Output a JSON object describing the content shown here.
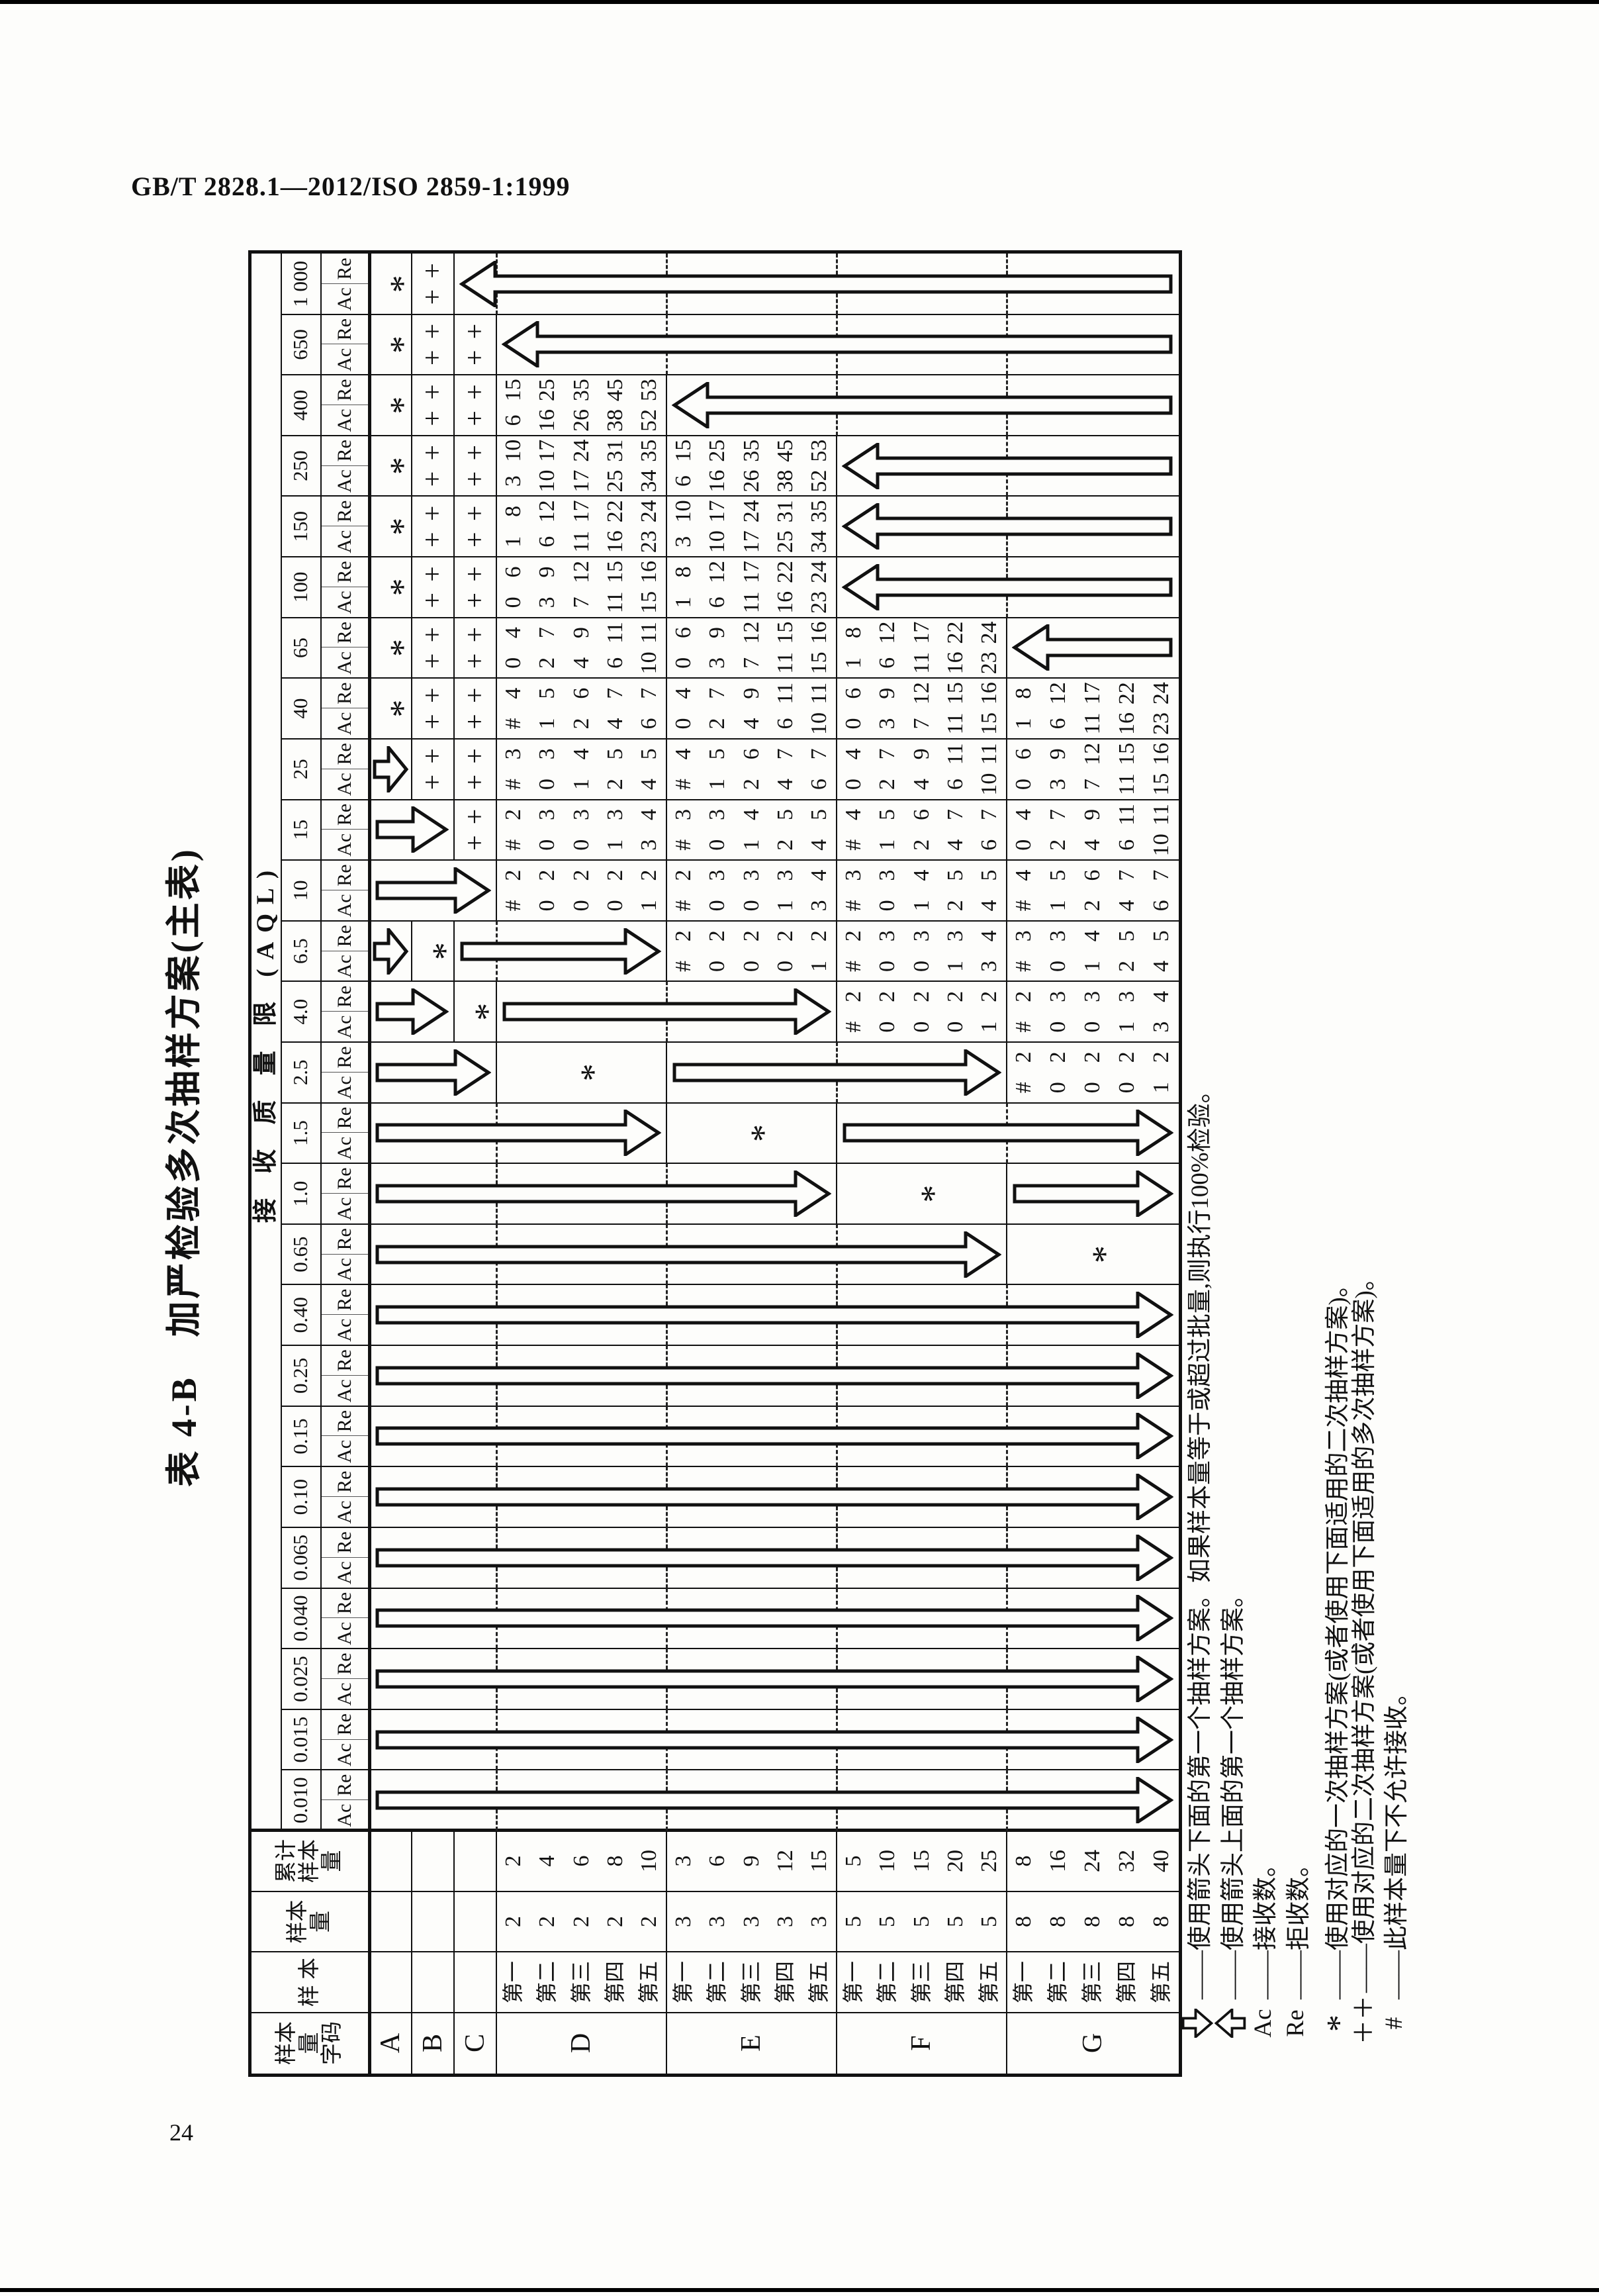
{
  "page": {
    "doc_ref": "GB/T 2828.1—2012/ISO 2859-1:1999",
    "page_number": "24"
  },
  "glyphs": {
    "star": "*",
    "double_plan": "++",
    "not_permitted": "#"
  },
  "table": {
    "title": "表 4-B　加严检验多次抽样方案(主表)",
    "headers": {
      "code": "样本量\n字码",
      "sample": "样 本",
      "size": "样本量",
      "cum": "累计\n样本量",
      "aql_span": "接 收 质 量 限 (AQL)",
      "ac": "Ac",
      "re": "Re"
    },
    "aql_labels": [
      "0.010",
      "0.015",
      "0.025",
      "0.040",
      "0.065",
      "0.10",
      "0.15",
      "0.25",
      "0.40",
      "0.65",
      "1.0",
      "1.5",
      "2.5",
      "4.0",
      "6.5",
      "10",
      "15",
      "25",
      "40",
      "65",
      "100",
      "150",
      "250",
      "400",
      "650",
      "1 000"
    ],
    "samples": [
      "第一",
      "第二",
      "第三",
      "第四",
      "第五"
    ],
    "ladder": [
      {
        "ac": [
          "#",
          "0",
          "0",
          "0",
          "1"
        ],
        "re": [
          "2",
          "2",
          "2",
          "2",
          "2"
        ]
      },
      {
        "ac": [
          "#",
          "0",
          "0",
          "1",
          "3"
        ],
        "re": [
          "2",
          "3",
          "3",
          "3",
          "4"
        ]
      },
      {
        "ac": [
          "#",
          "0",
          "1",
          "2",
          "4"
        ],
        "re": [
          "3",
          "3",
          "4",
          "5",
          "5"
        ]
      },
      {
        "ac": [
          "#",
          "1",
          "2",
          "4",
          "6"
        ],
        "re": [
          "4",
          "5",
          "6",
          "7",
          "7"
        ]
      },
      {
        "ac": [
          "0",
          "2",
          "4",
          "6",
          "10"
        ],
        "re": [
          "4",
          "7",
          "9",
          "11",
          "11"
        ]
      },
      {
        "ac": [
          "0",
          "3",
          "7",
          "11",
          "15"
        ],
        "re": [
          "6",
          "9",
          "12",
          "15",
          "16"
        ]
      },
      {
        "ac": [
          "1",
          "6",
          "11",
          "16",
          "23"
        ],
        "re": [
          "8",
          "12",
          "17",
          "22",
          "24"
        ]
      },
      {
        "ac": [
          "3",
          "10",
          "17",
          "25",
          "34"
        ],
        "re": [
          "10",
          "17",
          "24",
          "31",
          "35"
        ]
      },
      {
        "ac": [
          "6",
          "16",
          "26",
          "38",
          "52"
        ],
        "re": [
          "15",
          "25",
          "35",
          "45",
          "53"
        ]
      }
    ],
    "groups": [
      {
        "code": "A",
        "sizes": [],
        "cums": [],
        "plans": {}
      },
      {
        "code": "B",
        "sizes": [],
        "cums": [],
        "plans": {}
      },
      {
        "code": "C",
        "sizes": [],
        "cums": [],
        "plans": {}
      },
      {
        "code": "D",
        "sizes": [
          "2",
          "2",
          "2",
          "2",
          "2"
        ],
        "cums": [
          "2",
          "4",
          "6",
          "8",
          "10"
        ],
        "plans": {
          "10": 0,
          "15": 1,
          "25": 2,
          "40": 3,
          "65": 4,
          "100": 5,
          "150": 6,
          "250": 7,
          "400": 8
        }
      },
      {
        "code": "E",
        "sizes": [
          "3",
          "3",
          "3",
          "3",
          "3"
        ],
        "cums": [
          "3",
          "6",
          "9",
          "12",
          "15"
        ],
        "plans": {
          "6.5": 0,
          "10": 1,
          "15": 2,
          "25": 3,
          "40": 4,
          "65": 5,
          "100": 6,
          "150": 7,
          "250": 8
        }
      },
      {
        "code": "F",
        "sizes": [
          "5",
          "5",
          "5",
          "5",
          "5"
        ],
        "cums": [
          "5",
          "10",
          "15",
          "20",
          "25"
        ],
        "plans": {
          "4.0": 0,
          "6.5": 1,
          "10": 2,
          "15": 3,
          "25": 4,
          "40": 5,
          "65": 6
        }
      },
      {
        "code": "G",
        "sizes": [
          "8",
          "8",
          "8",
          "8",
          "8"
        ],
        "cums": [
          "8",
          "16",
          "24",
          "32",
          "40"
        ],
        "plans": {
          "2.5": 0,
          "4.0": 1,
          "6.5": 2,
          "10": 3,
          "15": 4,
          "25": 5,
          "40": 6
        }
      }
    ],
    "single_plan_stars": {
      "A": [
        "1 000",
        "650",
        "400",
        "250",
        "150",
        "100",
        "65",
        "40"
      ],
      "B": [
        "6.5"
      ],
      "C": [
        "4.0"
      ]
    },
    "merged_stars": [
      {
        "aql": "2.5",
        "group": "D"
      },
      {
        "aql": "1.5",
        "group": "E"
      },
      {
        "aql": "1.0",
        "group": "F"
      },
      {
        "aql": "0.65",
        "group": "G"
      }
    ],
    "double_plans": {
      "B": [
        "1 000",
        "650",
        "400",
        "250",
        "150",
        "100",
        "65",
        "40",
        "25"
      ],
      "C": [
        "650",
        "400",
        "250",
        "150",
        "100",
        "65",
        "40",
        "25",
        "15"
      ]
    },
    "cell_arrows": [
      {
        "aql": "25",
        "row": "A",
        "dir": "down"
      },
      {
        "aql": "6.5",
        "row": "A",
        "dir": "down"
      }
    ],
    "span_arrows": [
      {
        "aql": "1 000",
        "from": "C",
        "to": "G",
        "dir": "up"
      },
      {
        "aql": "650",
        "from": "D",
        "to": "G",
        "dir": "up"
      },
      {
        "aql": "400",
        "from": "E",
        "to": "G",
        "dir": "up"
      },
      {
        "aql": "250",
        "from": "F",
        "to": "G",
        "dir": "up"
      },
      {
        "aql": "150",
        "from": "F",
        "to": "G",
        "dir": "up"
      },
      {
        "aql": "100",
        "from": "F",
        "to": "G",
        "dir": "up"
      },
      {
        "aql": "65",
        "from": "G",
        "to": "G",
        "dir": "up"
      },
      {
        "aql": "15",
        "from": "A",
        "to": "B",
        "dir": "down"
      },
      {
        "aql": "10",
        "from": "A",
        "to": "C",
        "dir": "down"
      },
      {
        "aql": "6.5",
        "from": "C",
        "to": "D",
        "dir": "down"
      },
      {
        "aql": "4.0",
        "from": "A",
        "to": "B",
        "dir": "down"
      },
      {
        "aql": "4.0",
        "from": "D",
        "to": "E",
        "dir": "down"
      },
      {
        "aql": "2.5",
        "from": "A",
        "to": "C",
        "dir": "down"
      },
      {
        "aql": "2.5",
        "from": "E",
        "to": "F",
        "dir": "down"
      },
      {
        "aql": "1.5",
        "from": "A",
        "to": "D",
        "dir": "down"
      },
      {
        "aql": "1.5",
        "from": "F",
        "to": "G",
        "dir": "down"
      },
      {
        "aql": "1.0",
        "from": "A",
        "to": "E",
        "dir": "down"
      },
      {
        "aql": "1.0",
        "from": "G",
        "to": "G",
        "dir": "down"
      },
      {
        "aql": "0.65",
        "from": "A",
        "to": "F",
        "dir": "down"
      },
      {
        "aql": "0.40",
        "from": "A",
        "to": "G",
        "dir": "down"
      },
      {
        "aql": "0.25",
        "from": "A",
        "to": "G",
        "dir": "down"
      },
      {
        "aql": "0.15",
        "from": "A",
        "to": "G",
        "dir": "down"
      },
      {
        "aql": "0.10",
        "from": "A",
        "to": "G",
        "dir": "down"
      },
      {
        "aql": "0.065",
        "from": "A",
        "to": "G",
        "dir": "down"
      },
      {
        "aql": "0.040",
        "from": "A",
        "to": "G",
        "dir": "down"
      },
      {
        "aql": "0.025",
        "from": "A",
        "to": "G",
        "dir": "down"
      },
      {
        "aql": "0.015",
        "from": "A",
        "to": "G",
        "dir": "down"
      },
      {
        "aql": "0.010",
        "from": "A",
        "to": "G",
        "dir": "down"
      }
    ]
  },
  "footnotes": [
    {
      "symbol": "⇩",
      "text": "——使用箭头下面的第一个抽样方案。如果样本量等于或超过批量,则执行100%检验。"
    },
    {
      "symbol": "⇧",
      "text": "——使用箭头上面的第一个抽样方案。"
    },
    {
      "symbol": "Ac",
      "text": "——接收数。"
    },
    {
      "symbol": "Re",
      "text": "——拒收数。"
    },
    {
      "symbol": "*",
      "text": "——使用对应的一次抽样方案(或者使用下面适用的二次抽样方案)。"
    },
    {
      "symbol": "＋＋",
      "text": "——使用对应的二次抽样方案(或者使用下面适用的多次抽样方案)。"
    },
    {
      "symbol": "#",
      "text": "——此样本量下不允许接收。"
    }
  ]
}
